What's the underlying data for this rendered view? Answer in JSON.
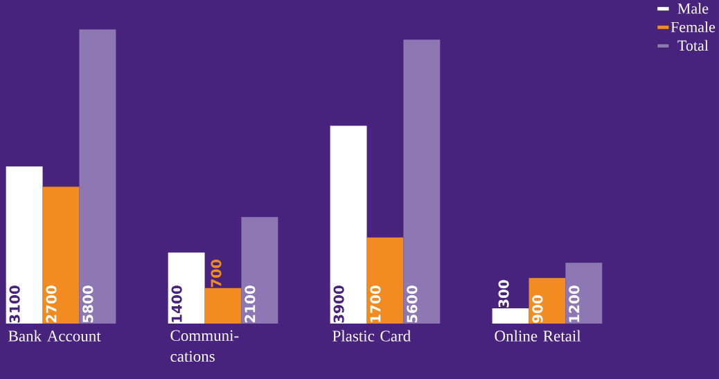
{
  "chart_data": {
    "type": "bar",
    "categories": [
      "Bank Account",
      "Communi-cations",
      "Plastic Card",
      "Online Retail"
    ],
    "series": [
      {
        "name": "Male",
        "color": "#ffffff",
        "values": [
          3100,
          1400,
          3900,
          300
        ]
      },
      {
        "name": "Female",
        "color": "#f28c20",
        "values": [
          2700,
          700,
          1700,
          900
        ]
      },
      {
        "name": "Total",
        "color": "#8e78b4",
        "values": [
          5800,
          2100,
          5600,
          1200
        ]
      }
    ],
    "data_labels": true,
    "legend": "top right",
    "tick_labels": "x",
    "grid": false
  }
}
